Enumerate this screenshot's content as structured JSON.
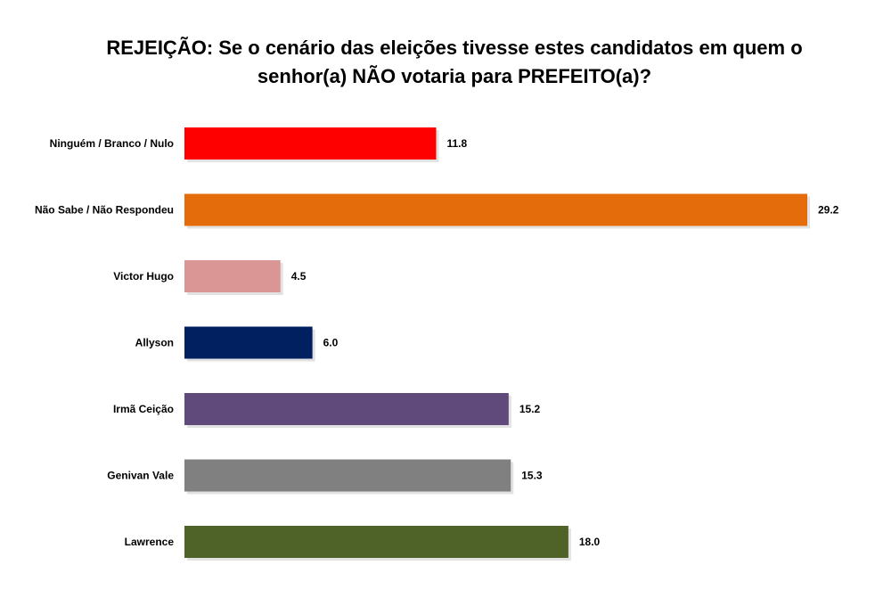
{
  "chart_data": {
    "type": "bar",
    "orientation": "horizontal",
    "title_lines": [
      "REJEIÇÃO: Se o cenário das eleições tivesse estes candidatos em quem o",
      "senhor(a) NÃO votaria para PREFEITO(a)?"
    ],
    "categories": [
      "Ninguém / Branco / Nulo",
      "Não Sabe / Não Respondeu",
      "Victor Hugo",
      "Allyson",
      "Irmã Ceição",
      "Genivan Vale",
      "Lawrence"
    ],
    "values": [
      11.8,
      29.2,
      4.5,
      6.0,
      15.2,
      15.3,
      18.0
    ],
    "value_labels": [
      "11.8",
      "29.2",
      "4.5",
      "6.0",
      "15.2",
      "15.3",
      "18.0"
    ],
    "colors": [
      "#ff0000",
      "#e46c0a",
      "#d99694",
      "#002060",
      "#604a7b",
      "#808080",
      "#4f6228"
    ],
    "xlim": [
      0,
      29.2
    ],
    "grid": false,
    "legend": "none"
  }
}
